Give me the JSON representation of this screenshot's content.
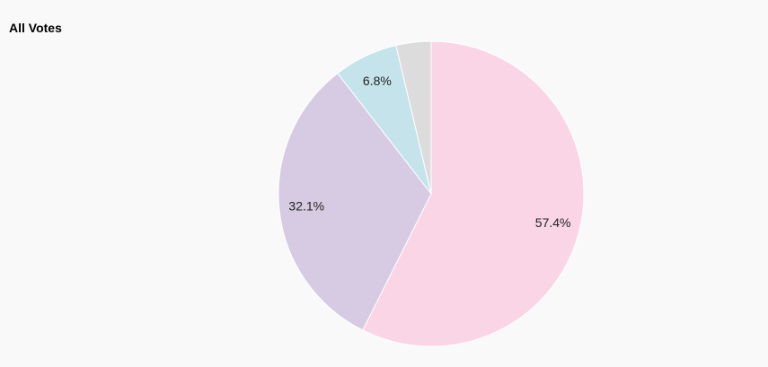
{
  "chart_data": {
    "type": "pie",
    "title": "All Votes",
    "slices": [
      {
        "value": 57.4,
        "label": "57.4%",
        "color": "#f9d5e5"
      },
      {
        "value": 32.1,
        "label": "32.1%",
        "color": "#d6cbe3"
      },
      {
        "value": 6.8,
        "label": "6.8%",
        "color": "#c5e3ea"
      },
      {
        "value": 3.7,
        "label": "",
        "color": "#dcdcdc"
      }
    ],
    "start_angle": "12 o'clock",
    "direction": "clockwise",
    "legend": "none"
  }
}
